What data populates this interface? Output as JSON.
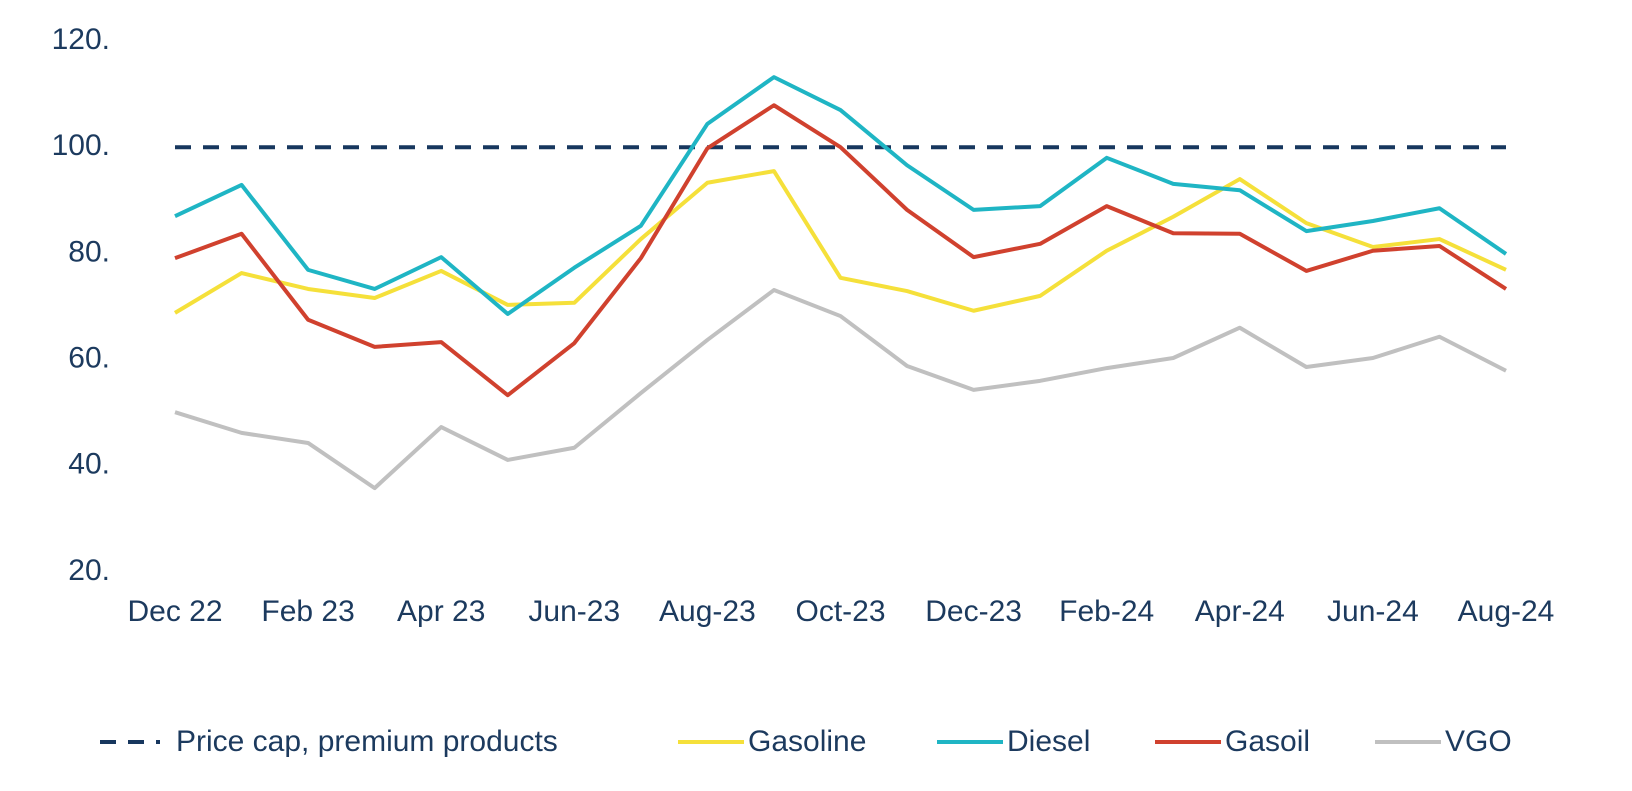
{
  "chart_data": {
    "type": "line",
    "categories": [
      "Dec 22",
      null,
      "Feb 23",
      null,
      "Apr 23",
      null,
      "Jun-23",
      null,
      "Aug-23",
      null,
      "Oct-23",
      null,
      "Dec-23",
      null,
      "Feb-24",
      null,
      "Apr-24",
      null,
      "Jun-24",
      null,
      "Aug-24"
    ],
    "ylim": [
      20,
      120
    ],
    "yticks": [
      {
        "value": 20,
        "label": "20."
      },
      {
        "value": 40,
        "label": "40."
      },
      {
        "value": 60,
        "label": "60."
      },
      {
        "value": 80,
        "label": "80."
      },
      {
        "value": 100,
        "label": "100."
      },
      {
        "value": 120,
        "label": "120."
      }
    ],
    "grid": false,
    "legend": "bottom",
    "series": [
      {
        "name": "Price cap, premium products",
        "color": "#17375e",
        "dashed": true,
        "values": [
          100,
          100,
          100,
          100,
          100,
          100,
          100,
          100,
          100,
          100,
          100,
          100,
          100,
          100,
          100,
          100,
          100,
          100,
          100,
          100,
          100
        ]
      },
      {
        "name": "Gasoline",
        "color": "#f5e03a",
        "values": [
          68.8,
          76.3,
          73.3,
          71.6,
          76.7,
          70.3,
          70.7,
          82.7,
          93.3,
          95.5,
          75.4,
          72.9,
          69.2,
          72.0,
          80.5,
          86.9,
          94.0,
          85.7,
          81.2,
          82.7,
          76.9
        ]
      },
      {
        "name": "Diesel",
        "color": "#1fb5c4",
        "values": [
          87.0,
          92.9,
          76.9,
          73.3,
          79.3,
          68.6,
          77.3,
          85.2,
          104.4,
          113.2,
          107.0,
          96.6,
          88.2,
          88.9,
          98.0,
          93.1,
          91.9,
          84.2,
          86.1,
          88.5,
          79.9
        ]
      },
      {
        "name": "Gasoil",
        "color": "#d0412e",
        "values": [
          79.1,
          83.7,
          67.5,
          62.4,
          63.3,
          53.3,
          63.1,
          79.1,
          99.8,
          107.9,
          100.0,
          88.2,
          79.3,
          81.8,
          88.9,
          83.8,
          83.7,
          76.7,
          80.5,
          81.4,
          73.3
        ]
      },
      {
        "name": "VGO",
        "color": "#c0c0c0",
        "values": [
          50.1,
          46.2,
          44.3,
          35.8,
          47.3,
          41.1,
          43.4,
          53.7,
          63.7,
          73.1,
          68.2,
          58.8,
          54.3,
          56.0,
          58.4,
          60.3,
          66.0,
          58.6,
          60.3,
          64.3,
          57.9
        ]
      }
    ]
  }
}
